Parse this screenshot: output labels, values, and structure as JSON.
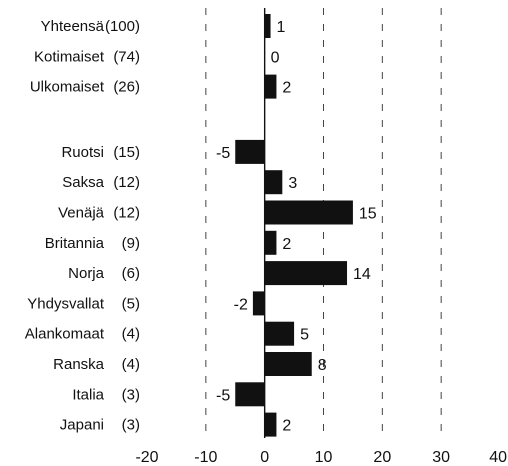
{
  "chart_data": {
    "type": "bar",
    "orientation": "horizontal",
    "title": "",
    "xlabel": "",
    "ylabel": "",
    "xlim": [
      -20,
      40
    ],
    "x_ticks": [
      -20,
      -10,
      0,
      10,
      20,
      30,
      40
    ],
    "grid": "vertical-dashed",
    "legend": "none",
    "groups": [
      [
        "Yhteensä",
        "Kotimaiset",
        "Ulkomaiset"
      ],
      [
        "Ruotsi",
        "Saksa",
        "Venäjä",
        "Britannia",
        "Norja",
        "Yhdysvallat",
        "Alankomaat",
        "Ranska",
        "Italia",
        "Japani"
      ]
    ],
    "categories": [
      {
        "name": "Yhteensä",
        "count": "(100)",
        "value": 1
      },
      {
        "name": "Kotimaiset",
        "count": "(74)",
        "value": 0
      },
      {
        "name": "Ulkomaiset",
        "count": "(26)",
        "value": 2
      },
      {
        "name": "Ruotsi",
        "count": "(15)",
        "value": -5
      },
      {
        "name": "Saksa",
        "count": "(12)",
        "value": 3
      },
      {
        "name": "Venäjä",
        "count": "(12)",
        "value": 15
      },
      {
        "name": "Britannia",
        "count": "(9)",
        "value": 2
      },
      {
        "name": "Norja",
        "count": "(6)",
        "value": 14
      },
      {
        "name": "Yhdysvallat",
        "count": "(5)",
        "value": -2
      },
      {
        "name": "Alankomaat",
        "count": "(4)",
        "value": 5
      },
      {
        "name": "Ranska",
        "count": "(4)",
        "value": 8
      },
      {
        "name": "Italia",
        "count": "(3)",
        "value": -5
      },
      {
        "name": "Japani",
        "count": "(3)",
        "value": 2
      }
    ],
    "colors": {
      "bar": "#111111",
      "grid": "#444444",
      "text": "#111111"
    }
  }
}
